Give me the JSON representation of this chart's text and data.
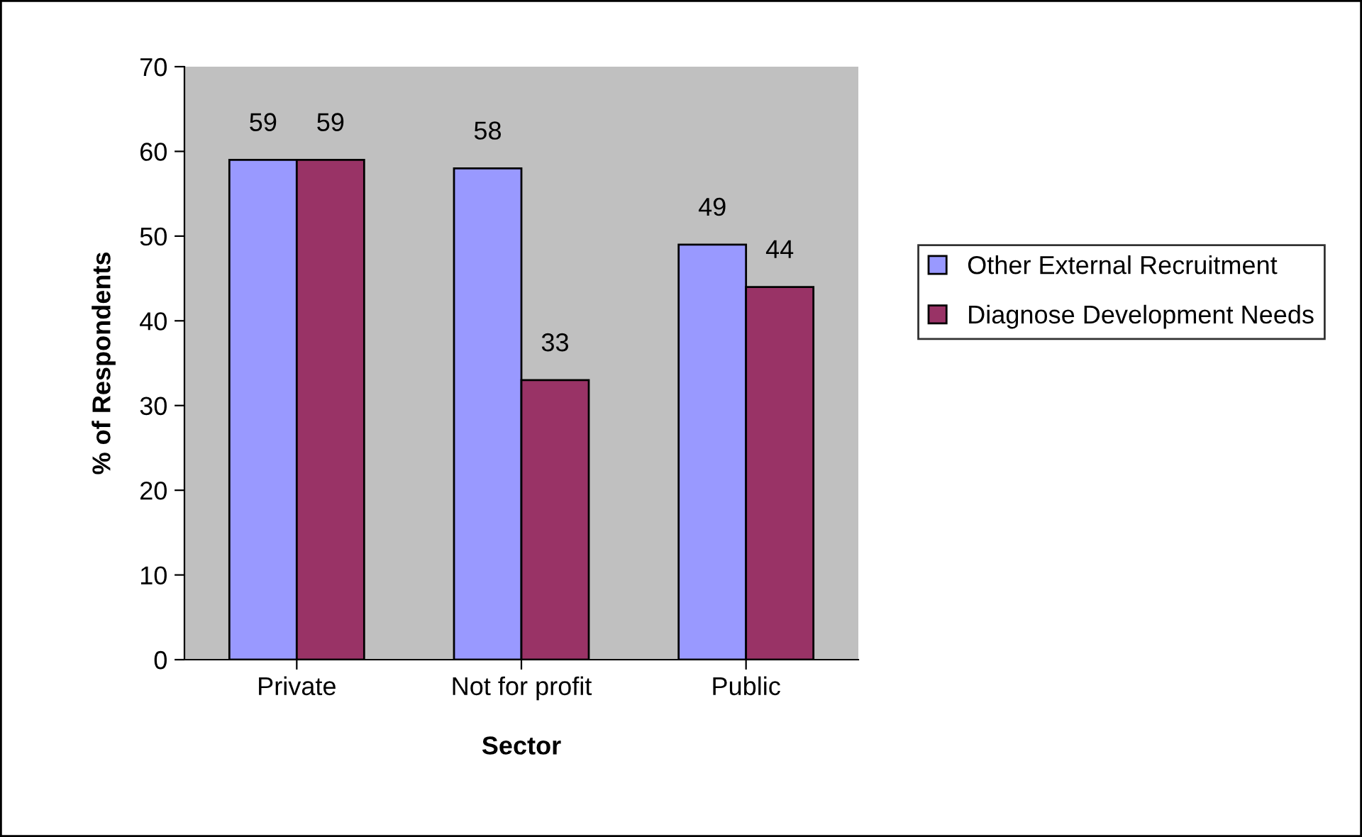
{
  "chart_data": {
    "type": "bar",
    "xlabel": "Sector",
    "ylabel": "% of Respondents",
    "categories": [
      "Private",
      "Not for profit",
      "Public"
    ],
    "series": [
      {
        "name": "Other External Recruitment",
        "color": "#9999ff",
        "values": [
          59,
          58,
          49
        ]
      },
      {
        "name": "Diagnose Development Needs",
        "color": "#993366",
        "values": [
          59,
          33,
          44
        ]
      }
    ],
    "ylim": [
      0,
      70
    ],
    "yticks": [
      0,
      10,
      20,
      30,
      40,
      50,
      60,
      70
    ],
    "grid": false,
    "legend": "right",
    "data_labels": true
  }
}
